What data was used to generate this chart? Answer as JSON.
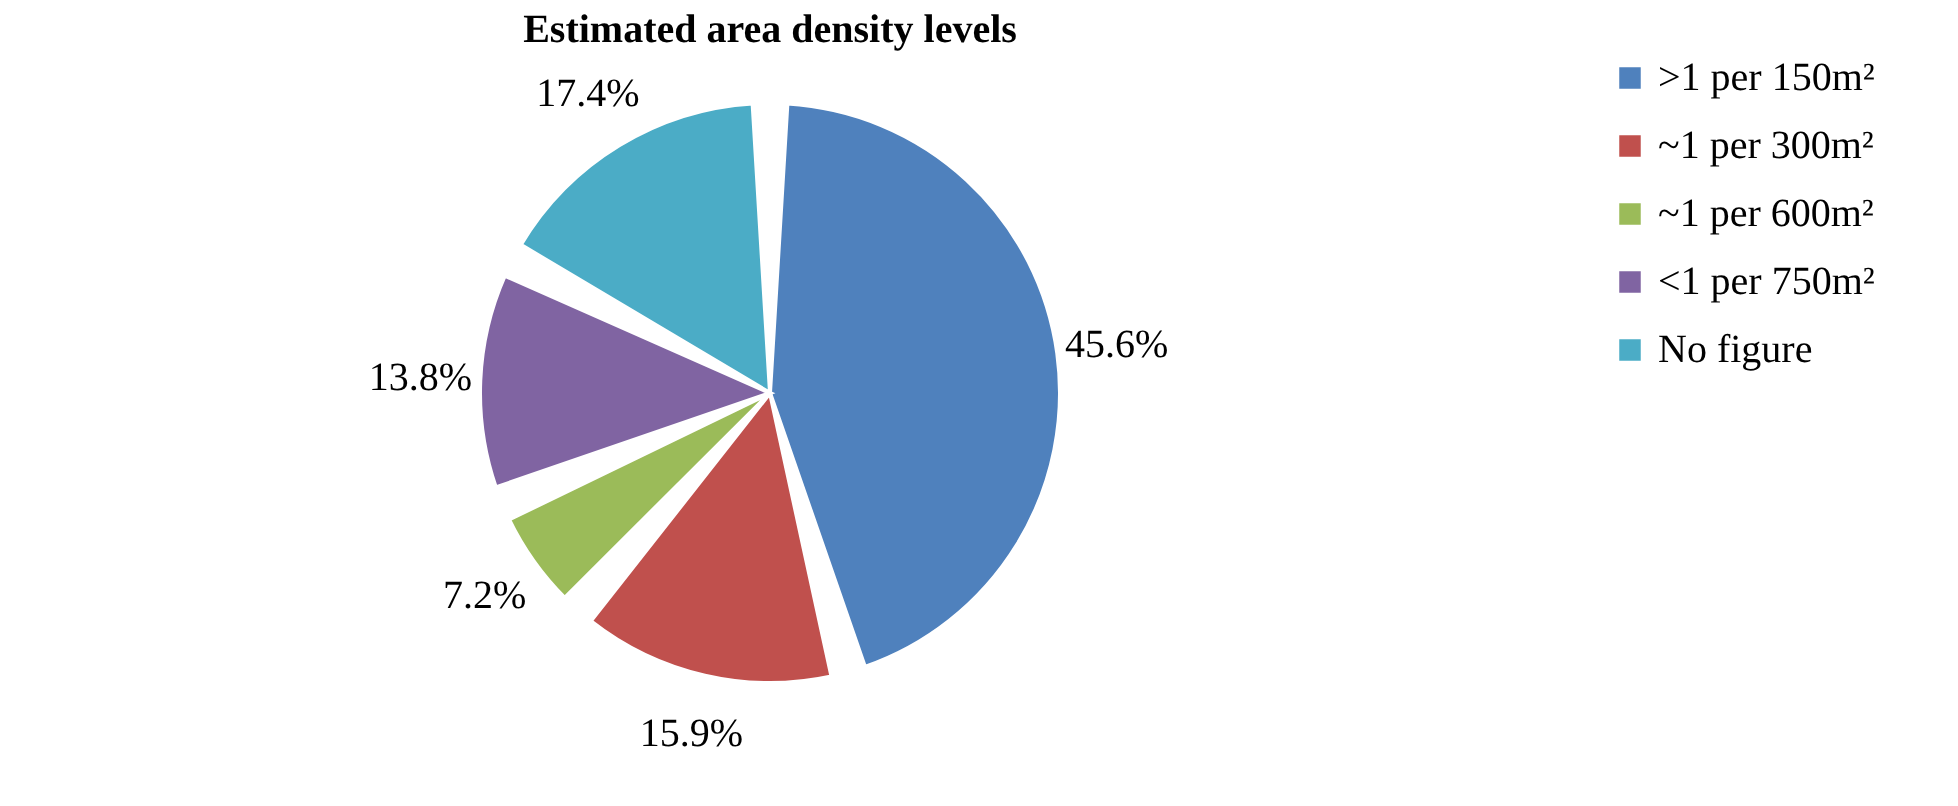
{
  "chart_data": {
    "type": "pie",
    "title": "Estimated area density levels",
    "categories": [
      ">1 per 150m²",
      "~1 per 300m²",
      "~1 per 600m²",
      "<1 per 750m²",
      "No figure"
    ],
    "values": [
      45.6,
      15.9,
      7.2,
      13.8,
      17.4
    ],
    "colors": [
      "#4f81bd",
      "#c0504d",
      "#9bbb59",
      "#8064a2",
      "#4bacc6"
    ],
    "value_labels": [
      "45.6%",
      "15.9%",
      "7.2%",
      "13.8%",
      "17.4%"
    ],
    "legend": "right"
  }
}
